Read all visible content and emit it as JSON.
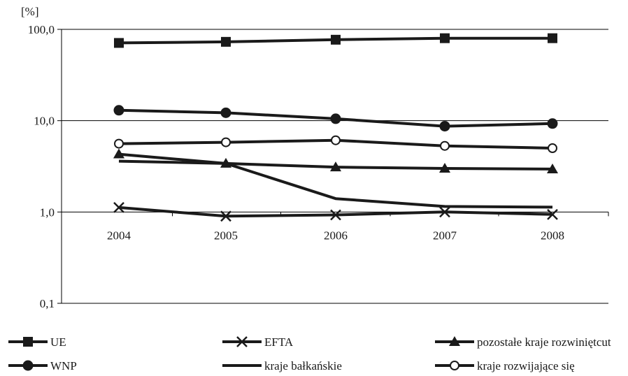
{
  "chart_data": {
    "type": "line",
    "title": "",
    "unit_label": "[%]",
    "xlabel": "",
    "ylabel": "",
    "y_scale": "log",
    "ylim": [
      0.1,
      100
    ],
    "y_ticks": [
      {
        "value": 0.1,
        "label": "0,1"
      },
      {
        "value": 1,
        "label": "1,0"
      },
      {
        "value": 10,
        "label": "10,0"
      },
      {
        "value": 100,
        "label": "100,0"
      }
    ],
    "categories": [
      "2004",
      "2005",
      "2006",
      "2007",
      "2008"
    ],
    "grid": "horizontal",
    "legend_position": "bottom",
    "series": [
      {
        "name": "UE",
        "marker": "square",
        "values": [
          71,
          73,
          77,
          80,
          80
        ]
      },
      {
        "name": "EFTA",
        "marker": "x",
        "values": [
          1.12,
          0.9,
          0.93,
          1.0,
          0.94
        ]
      },
      {
        "name": "pozostałe kraje rozwiniętcut",
        "marker": "triangle",
        "values": [
          4.3,
          3.4,
          3.1,
          3.0,
          2.95
        ]
      },
      {
        "name": "WNP",
        "marker": "circle",
        "values": [
          13.0,
          12.2,
          10.5,
          8.7,
          9.3
        ]
      },
      {
        "name": "kraje bałkańskie",
        "marker": "none",
        "values": [
          3.6,
          3.4,
          1.4,
          1.15,
          1.13
        ]
      },
      {
        "name": "kraje rozwijające się",
        "marker": "open-circle",
        "values": [
          5.6,
          5.8,
          6.1,
          5.3,
          5.0
        ]
      }
    ],
    "colors": {
      "line": "#1a1a1a",
      "axis": "#000000",
      "grid": "#000000"
    }
  }
}
